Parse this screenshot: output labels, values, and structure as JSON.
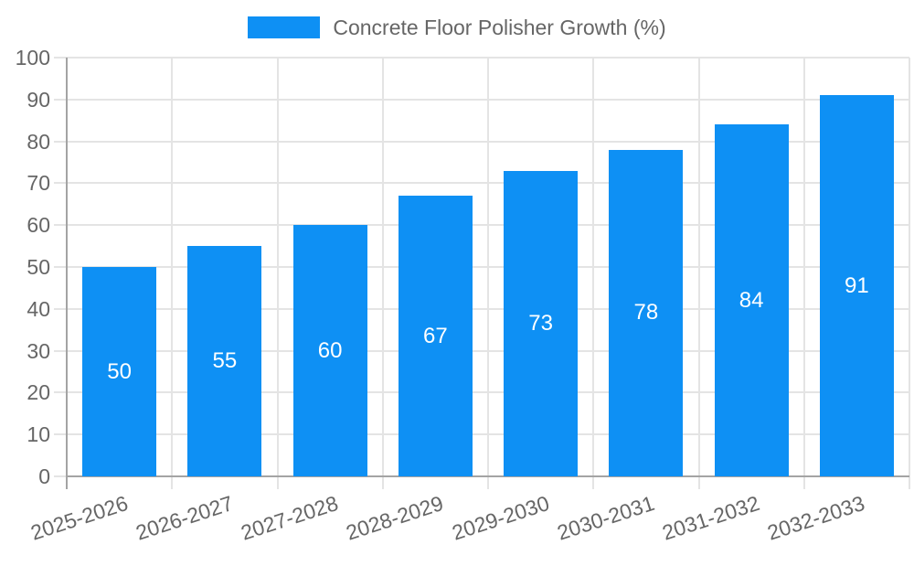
{
  "legend": {
    "position": "top"
  },
  "chart_data": {
    "type": "bar",
    "title": "Concrete Floor Polisher Growth (%)",
    "categories": [
      "2025-2026",
      "2026-2027",
      "2027-2028",
      "2028-2029",
      "2029-2030",
      "2030-2031",
      "2031-2032",
      "2032-2033"
    ],
    "series": [
      {
        "name": "Concrete Floor Polisher Growth (%)",
        "values": [
          50,
          55,
          60,
          67,
          73,
          78,
          84,
          91
        ]
      }
    ],
    "value_labels": [
      "50",
      "55",
      "60",
      "67",
      "73",
      "78",
      "84",
      "91"
    ],
    "yticks": [
      0,
      10,
      20,
      30,
      40,
      50,
      60,
      70,
      80,
      90,
      100
    ],
    "ylim": [
      0,
      100
    ],
    "xlabel": "",
    "ylabel": "",
    "grid": true,
    "legend_position": "top",
    "colors": {
      "bar_fill": "#0e90f4",
      "value_label": "#ffffff",
      "axis_text": "#666666",
      "grid_line": "#e4e4e4",
      "axis_line": "#a4a4a4",
      "background": "#ffffff"
    }
  }
}
